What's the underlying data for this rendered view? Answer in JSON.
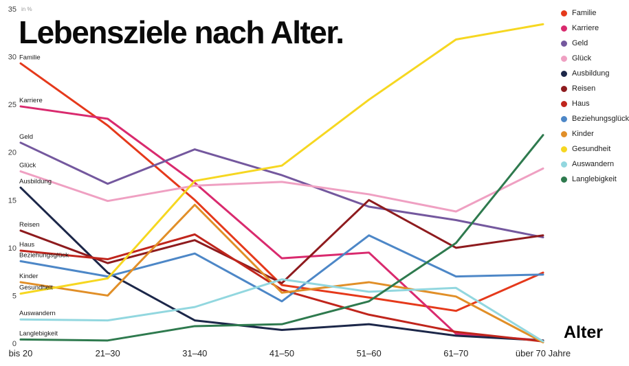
{
  "title": "Lebensziele nach Alter.",
  "chart_data": {
    "type": "line",
    "title": "Lebensziele nach Alter.",
    "xlabel": "Alter",
    "ylabel": "in %",
    "ylim": [
      0,
      35
    ],
    "yticks": [
      0,
      5,
      10,
      15,
      20,
      25,
      30,
      35
    ],
    "grid": false,
    "legend_position": "top-right",
    "categories": [
      "bis 20",
      "21–30",
      "31–40",
      "41–50",
      "51–60",
      "61–70",
      "über 70 Jahre"
    ],
    "series": [
      {
        "name": "Familie",
        "color": "#e5391b",
        "values": [
          29.3,
          22.8,
          15.0,
          6.1,
          4.8,
          3.4,
          7.4
        ]
      },
      {
        "name": "Karriere",
        "color": "#d92a6e",
        "values": [
          24.8,
          23.5,
          16.8,
          8.9,
          9.5,
          1.0,
          0.3
        ]
      },
      {
        "name": "Geld",
        "color": "#74589e",
        "values": [
          21.0,
          16.7,
          20.3,
          17.6,
          14.3,
          12.9,
          11.1
        ]
      },
      {
        "name": "Glück",
        "color": "#efa0c2",
        "values": [
          18.0,
          14.9,
          16.5,
          16.9,
          15.6,
          13.8,
          18.3
        ]
      },
      {
        "name": "Ausbildung",
        "color": "#1c2749",
        "values": [
          16.3,
          7.4,
          2.4,
          1.4,
          2.0,
          0.8,
          0.3
        ]
      },
      {
        "name": "Reisen",
        "color": "#8e1b1e",
        "values": [
          11.8,
          8.4,
          10.8,
          6.3,
          15.0,
          10.0,
          11.3
        ]
      },
      {
        "name": "Haus",
        "color": "#c0251c",
        "values": [
          9.7,
          8.8,
          11.4,
          5.6,
          3.0,
          1.2,
          0.2
        ]
      },
      {
        "name": "Beziehungsglück",
        "color": "#4d87c7",
        "values": [
          8.6,
          7.0,
          9.4,
          4.4,
          11.3,
          7.0,
          7.2
        ]
      },
      {
        "name": "Kinder",
        "color": "#e18f28",
        "values": [
          6.4,
          5.0,
          14.5,
          5.3,
          6.4,
          4.9,
          0.1
        ]
      },
      {
        "name": "Gesundheit",
        "color": "#f6d721",
        "values": [
          5.2,
          6.8,
          17.0,
          18.6,
          25.5,
          31.8,
          33.4
        ]
      },
      {
        "name": "Auswandern",
        "color": "#92d7df",
        "values": [
          2.5,
          2.4,
          3.8,
          6.7,
          5.4,
          5.8,
          0.2
        ]
      },
      {
        "name": "Langlebigkeit",
        "color": "#2e7a4e",
        "values": [
          0.4,
          0.3,
          1.8,
          2.0,
          4.4,
          10.5,
          21.8
        ]
      }
    ]
  }
}
